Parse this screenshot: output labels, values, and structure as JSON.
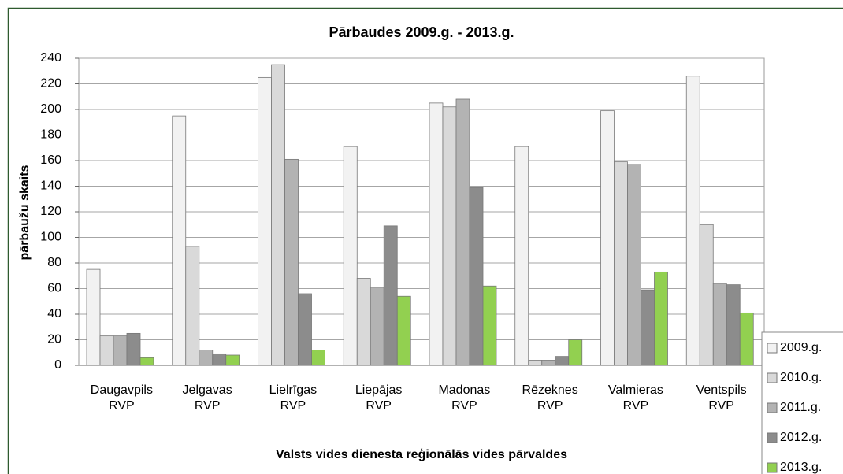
{
  "chart_data": {
    "type": "bar",
    "title": "Pārbaudes 2009.g. - 2013.g.",
    "x_label": "Valsts vides dienesta reģionālās vides pārvaldes",
    "y_label": "pārbaužu skaits",
    "categories": [
      "Daugavpils RVP",
      "Jelgavas RVP",
      "Lielrīgas RVP",
      "Liepājas RVP",
      "Madonas RVP",
      "Rēzeknes RVP",
      "Valmieras RVP",
      "Ventspils RVP"
    ],
    "series": [
      {
        "name": "2009.g.",
        "color": "#f2f2f2",
        "values": [
          75,
          195,
          225,
          171,
          205,
          171,
          199,
          226
        ]
      },
      {
        "name": "2010.g.",
        "color": "#d9d9d9",
        "values": [
          23,
          93,
          235,
          68,
          202,
          4,
          159,
          110
        ]
      },
      {
        "name": "2011.g.",
        "color": "#b3b3b3",
        "values": [
          23,
          12,
          161,
          61,
          208,
          4,
          157,
          64
        ]
      },
      {
        "name": "2012.g.",
        "color": "#8c8c8c",
        "values": [
          25,
          9,
          56,
          109,
          139,
          7,
          59,
          63
        ]
      },
      {
        "name": "2013.g.",
        "color": "#92d050",
        "values": [
          6,
          8,
          12,
          54,
          62,
          20,
          73,
          41
        ]
      }
    ],
    "ylim": [
      0,
      240
    ],
    "yticks": [
      0,
      20,
      40,
      60,
      80,
      100,
      120,
      140,
      160,
      180,
      200,
      220,
      240
    ],
    "grid": true,
    "legend": "right"
  }
}
